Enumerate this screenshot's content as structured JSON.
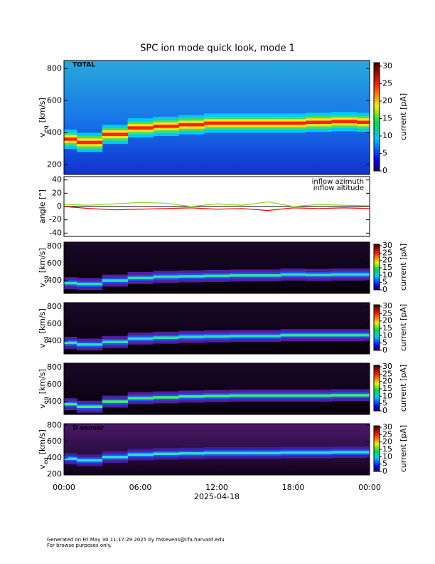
{
  "title": "SPC ion mode quick look, mode 1",
  "footer": [
    "Generated on Fri May 30 11:17:29 2025 by mstevens@cfa.harvard.edu",
    "For browse purposes only."
  ],
  "chart_data": [
    {
      "type": "spectrogram",
      "label": "TOTAL",
      "ylabel": "v",
      "ylabel_sub": "eq",
      "ylabel_unit": "[km/s]",
      "ylim": [
        140,
        850
      ],
      "yticks": [
        200,
        400,
        600,
        800
      ],
      "xlim": [
        0,
        24
      ],
      "x": [
        0,
        2,
        4,
        6,
        8,
        10,
        12,
        14,
        16,
        18,
        20,
        22,
        24
      ],
      "values": [
        360,
        340,
        390,
        430,
        440,
        450,
        460,
        460,
        460,
        460,
        465,
        470,
        465
      ],
      "clabel": "current [pA]",
      "clim": [
        0,
        31
      ],
      "cticks": [
        0,
        5,
        10,
        15,
        20,
        25,
        30
      ]
    },
    {
      "type": "line",
      "ylabel": "angle [°]",
      "ylim": [
        -45,
        45
      ],
      "yticks": [
        -40,
        -20,
        0,
        20,
        40
      ],
      "xlim": [
        0,
        24
      ],
      "x": [
        0,
        2,
        4,
        6,
        8,
        10,
        12,
        14,
        16,
        18,
        20,
        22,
        24
      ],
      "series": [
        {
          "name": "inflow azimuth",
          "color": "#ff0000",
          "values": [
            0,
            -3,
            -5,
            -4,
            -3,
            -2,
            -4,
            -3,
            -6,
            -2,
            -3,
            -2,
            -3
          ]
        },
        {
          "name": "inflow altitude",
          "color": "#7fdc20",
          "values": [
            3,
            2,
            4,
            6,
            5,
            0,
            4,
            2,
            7,
            0,
            3,
            2,
            1
          ]
        }
      ]
    },
    {
      "type": "spectrogram",
      "ylabel": "v",
      "ylabel_sub": "eq",
      "ylabel_unit": "[km/s]",
      "ylim": [
        250,
        850
      ],
      "yticks": [
        400,
        600,
        800
      ],
      "xlim": [
        0,
        24
      ],
      "x": [
        0,
        2,
        4,
        6,
        8,
        10,
        12,
        14,
        16,
        18,
        20,
        22,
        24
      ],
      "values": [
        370,
        360,
        400,
        430,
        445,
        450,
        455,
        460,
        460,
        470,
        465,
        470,
        470
      ],
      "clabel": "current [pA]",
      "clim": [
        0,
        31
      ],
      "cticks": [
        0,
        5,
        10,
        15,
        20,
        25,
        30
      ]
    },
    {
      "type": "spectrogram",
      "ylabel": "v",
      "ylabel_sub": "eq",
      "ylabel_unit": "[km/s]",
      "ylim": [
        250,
        850
      ],
      "yticks": [
        400,
        600,
        800
      ],
      "xlim": [
        0,
        24
      ],
      "x": [
        0,
        2,
        4,
        6,
        8,
        10,
        12,
        14,
        16,
        18,
        20,
        22,
        24
      ],
      "values": [
        380,
        360,
        390,
        430,
        440,
        450,
        455,
        460,
        460,
        470,
        470,
        470,
        470
      ],
      "clabel": "current [pA]",
      "clim": [
        0,
        31
      ],
      "cticks": [
        0,
        5,
        10,
        15,
        20,
        25,
        30
      ]
    },
    {
      "type": "spectrogram",
      "ylabel": "v",
      "ylabel_sub": "eq",
      "ylabel_unit": "[km/s]",
      "ylim": [
        250,
        850
      ],
      "yticks": [
        400,
        600,
        800
      ],
      "xlim": [
        0,
        24
      ],
      "x": [
        0,
        2,
        4,
        6,
        8,
        10,
        12,
        14,
        16,
        18,
        20,
        22,
        24
      ],
      "values": [
        370,
        340,
        400,
        440,
        450,
        460,
        465,
        470,
        470,
        470,
        470,
        475,
        475
      ],
      "clabel": "current [pA]",
      "clim": [
        0,
        31
      ],
      "cticks": [
        0,
        5,
        10,
        15,
        20,
        25,
        30
      ]
    },
    {
      "type": "spectrogram",
      "label": "D sensor",
      "ylabel": "v",
      "ylabel_sub": "eq",
      "ylabel_unit": "[km/s]",
      "ylim": [
        190,
        820
      ],
      "yticks": [
        200,
        400,
        600,
        800
      ],
      "xlim": [
        0,
        24
      ],
      "x": [
        0,
        2,
        4,
        6,
        8,
        10,
        12,
        14,
        16,
        18,
        20,
        22,
        24
      ],
      "values": [
        390,
        370,
        410,
        440,
        450,
        455,
        460,
        460,
        460,
        465,
        465,
        470,
        470
      ],
      "clabel": "current [pA]",
      "clim": [
        0,
        31
      ],
      "cticks": [
        0,
        5,
        10,
        15,
        20,
        25,
        30
      ],
      "xticks": [
        {
          "value": 0,
          "label": "00:00"
        },
        {
          "value": 6,
          "label": "06:00"
        },
        {
          "value": 12,
          "label": "12:00"
        },
        {
          "value": 18,
          "label": "18:00"
        },
        {
          "value": 24,
          "label": "00:00"
        }
      ],
      "xlabel": "2025-04-18"
    }
  ]
}
